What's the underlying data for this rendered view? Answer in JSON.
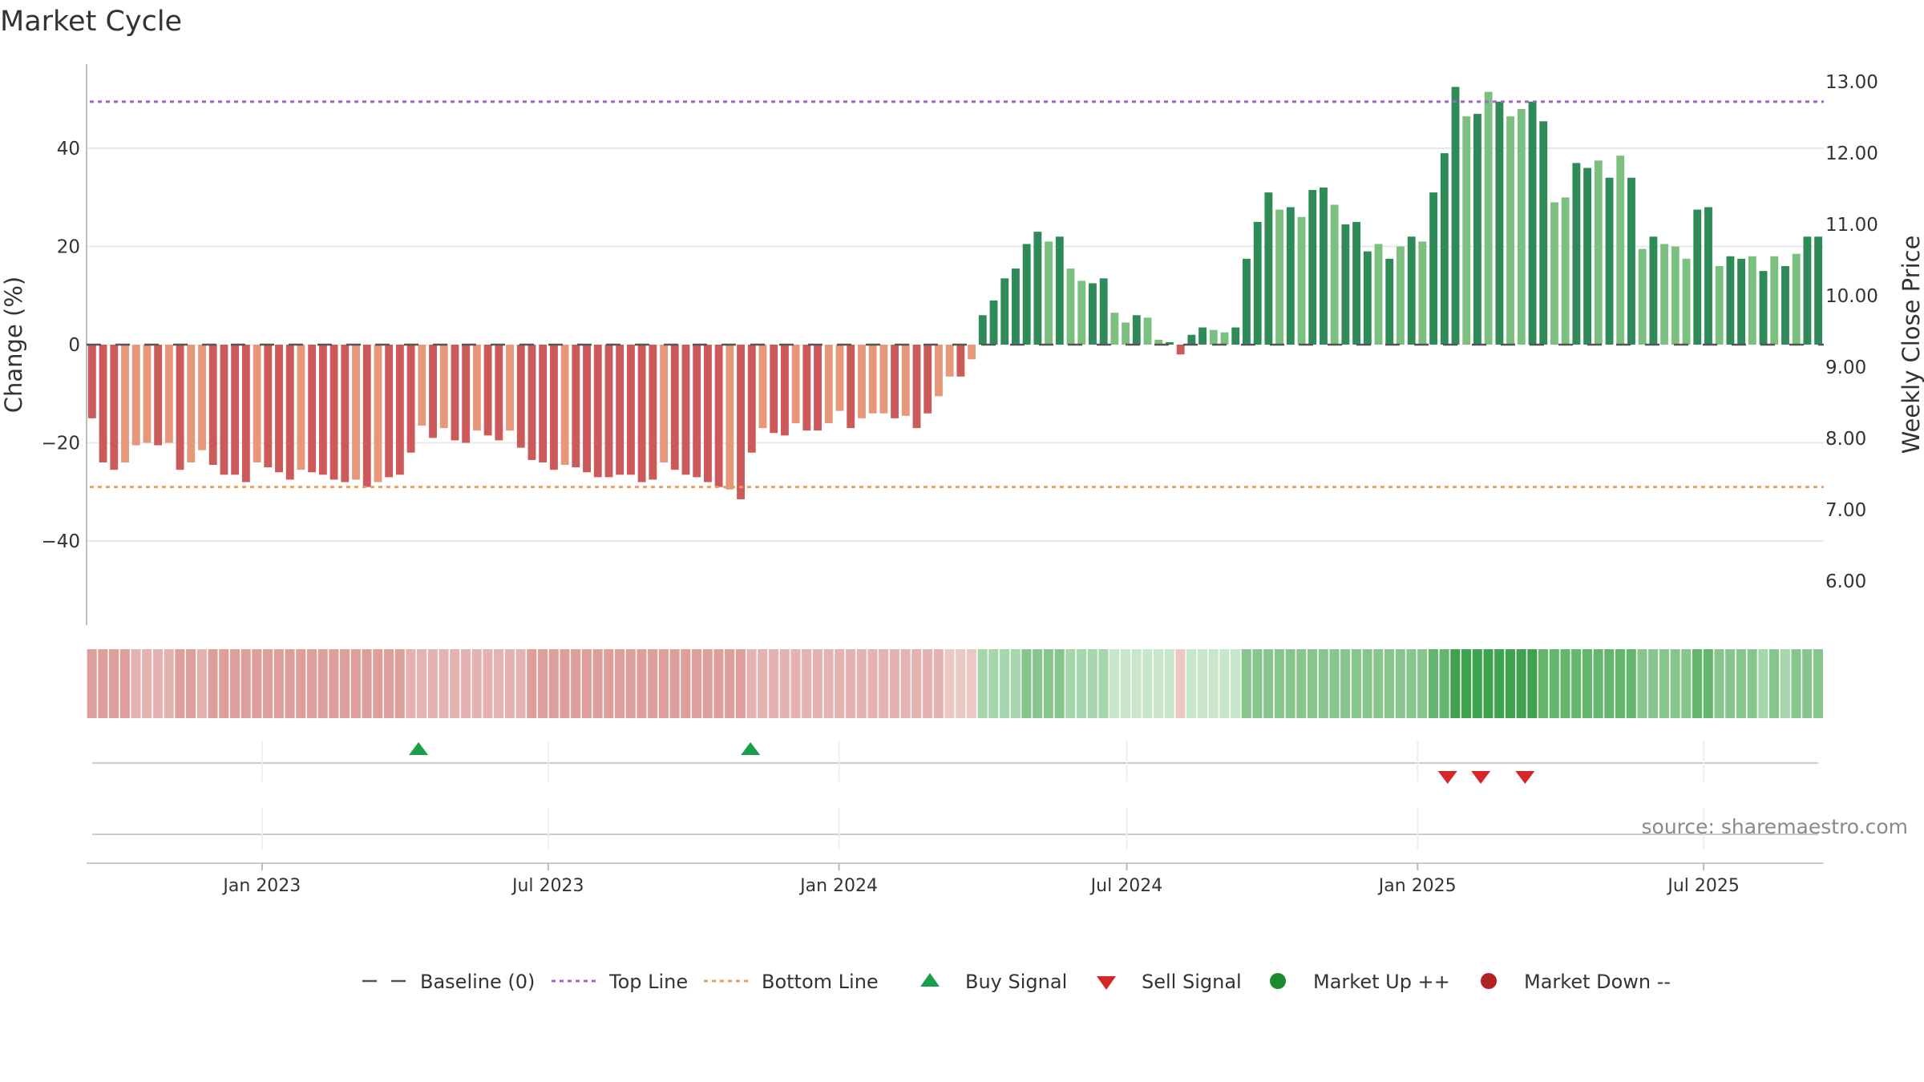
{
  "title": "Market Cycle",
  "source": "source: sharemaestro.com",
  "colors": {
    "red_dark": "#cc5a5a",
    "red_light": "#e8987a",
    "green_dark": "#2e8b57",
    "green_light": "#7cc07f",
    "top_line": "#a463c9",
    "bottom_line": "#e8a060",
    "baseline": "#555555",
    "buy": "#1a9e4a",
    "sell": "#d62728",
    "market_up": "#1e8a2e",
    "market_down": "#b22222"
  },
  "legend": [
    {
      "label": "Baseline (0)",
      "icon": "dash-line",
      "color": "#555555"
    },
    {
      "label": "Top Line",
      "icon": "dotted-line",
      "color": "#a463c9"
    },
    {
      "label": "Bottom Line",
      "icon": "dotted-line",
      "color": "#e8a060"
    },
    {
      "label": "Buy Signal",
      "icon": "triangle-up",
      "color": "#1a9e4a"
    },
    {
      "label": "Sell Signal",
      "icon": "triangle-down",
      "color": "#d62728"
    },
    {
      "label": "Market Up ++",
      "icon": "circle",
      "color": "#1e8a2e"
    },
    {
      "label": "Market Down --",
      "icon": "circle",
      "color": "#b22222"
    }
  ],
  "chart_data": {
    "type": "bar",
    "title": "Market Cycle",
    "ylabel": "Change (%)",
    "y2label": "Weekly Close Price",
    "ylim": [
      -57,
      57
    ],
    "y_ticks": [
      40,
      20,
      0,
      -20,
      -40
    ],
    "y_tick_labels": [
      "40",
      "20",
      "0",
      "−20",
      "−40"
    ],
    "y2_ticks": [
      13,
      12,
      11,
      10,
      9,
      8,
      7,
      6
    ],
    "y2_tick_labels": [
      "13.00",
      "12.00",
      "11.00",
      "10.00",
      "9.00",
      "8.00",
      "7.00",
      "6.00"
    ],
    "x_start": "2022-09-12",
    "x_end": "2025-09-15",
    "x_ticks": [
      "2023-01-01",
      "2023-07-01",
      "2024-01-01",
      "2024-07-01",
      "2025-01-01",
      "2025-07-01"
    ],
    "x_tick_labels": [
      "Jan 2023",
      "Jul 2023",
      "Jan 2024",
      "Jul 2024",
      "Jan 2025",
      "Jul 2025"
    ],
    "top_line": 49.5,
    "bottom_line": -29,
    "baseline": 0,
    "grid": true,
    "legend_position": "bottom",
    "values": [
      -15,
      -24,
      -25.5,
      -24,
      -20.5,
      -20,
      -20.5,
      -20,
      -25.5,
      -24,
      -21.5,
      -24.5,
      -26.5,
      -26.5,
      -28,
      -24,
      -25,
      -26,
      -27.5,
      -25.5,
      -26,
      -26.5,
      -27.5,
      -28,
      -27.5,
      -29,
      -28,
      -27,
      -26.5,
      -22,
      -16.5,
      -19,
      -17,
      -19.5,
      -20,
      -17.5,
      -18.5,
      -19.5,
      -17.5,
      -21,
      -23.5,
      -24,
      -25.5,
      -24.5,
      -25,
      -26,
      -27,
      -27,
      -26.5,
      -26.5,
      -28,
      -27.5,
      -24,
      -25.5,
      -26.5,
      -27,
      -28,
      -29,
      -29.5,
      -31.5,
      -22,
      -17,
      -18,
      -18.5,
      -16,
      -17.5,
      -17.5,
      -16,
      -13.5,
      -17,
      -15,
      -14,
      -14,
      -15,
      -14.5,
      -17,
      -14,
      -10.5,
      -6.5,
      -6.5,
      -3,
      6,
      9,
      13.5,
      15.5,
      20.5,
      23,
      21,
      22,
      15.5,
      13,
      12.5,
      13.5,
      6.5,
      4.5,
      6,
      5.5,
      1,
      0.5,
      -2,
      2,
      3.5,
      3,
      2.5,
      3.5,
      17.5,
      25,
      31,
      27.5,
      28,
      26,
      31.5,
      32,
      28.5,
      24.5,
      25,
      19,
      20.5,
      17.5,
      20,
      22,
      21,
      31,
      39,
      52.5,
      46.5,
      47,
      51.5,
      49.5,
      46.5,
      48,
      49.5,
      45.5,
      29,
      30,
      37,
      36,
      37.5,
      34,
      38.5,
      34,
      19.5,
      22,
      20.5,
      20,
      17.5,
      27.5,
      28,
      16,
      18,
      17.5,
      18,
      15,
      18,
      16,
      18.5,
      22,
      22
    ],
    "shades": [
      "d",
      "d",
      "d",
      "l",
      "l",
      "l",
      "d",
      "l",
      "d",
      "l",
      "l",
      "d",
      "d",
      "d",
      "d",
      "l",
      "d",
      "d",
      "d",
      "l",
      "d",
      "d",
      "d",
      "d",
      "l",
      "d",
      "l",
      "d",
      "d",
      "d",
      "l",
      "d",
      "l",
      "d",
      "d",
      "l",
      "d",
      "d",
      "l",
      "d",
      "d",
      "d",
      "d",
      "l",
      "d",
      "d",
      "d",
      "d",
      "d",
      "d",
      "d",
      "d",
      "l",
      "d",
      "d",
      "d",
      "d",
      "d",
      "l",
      "d",
      "d",
      "l",
      "d",
      "d",
      "l",
      "d",
      "d",
      "l",
      "l",
      "d",
      "l",
      "l",
      "l",
      "d",
      "l",
      "d",
      "d",
      "l",
      "l",
      "d",
      "l",
      "d",
      "d",
      "d",
      "d",
      "d",
      "d",
      "l",
      "d",
      "l",
      "l",
      "d",
      "d",
      "l",
      "l",
      "d",
      "l",
      "l",
      "d",
      "d",
      "d",
      "d",
      "l",
      "l",
      "d",
      "d",
      "d",
      "d",
      "l",
      "d",
      "l",
      "d",
      "d",
      "l",
      "d",
      "d",
      "d",
      "l",
      "d",
      "l",
      "d",
      "l",
      "d",
      "d",
      "d",
      "l",
      "d",
      "l",
      "d",
      "l",
      "l",
      "d",
      "d",
      "l",
      "l",
      "d",
      "d",
      "l",
      "d",
      "l",
      "d",
      "l",
      "d",
      "l",
      "l",
      "l",
      "d",
      "d",
      "l",
      "d",
      "d",
      "l",
      "d",
      "l",
      "d",
      "l",
      "d",
      "d",
      "l"
    ],
    "heat_strength": [
      3,
      3,
      3,
      3,
      2,
      2,
      2,
      2,
      3,
      3,
      2,
      3,
      3,
      3,
      3,
      3,
      3,
      3,
      3,
      3,
      3,
      3,
      3,
      3,
      3,
      3,
      3,
      3,
      3,
      2,
      2,
      2,
      2,
      2,
      2,
      2,
      2,
      2,
      2,
      2,
      3,
      3,
      3,
      3,
      3,
      3,
      3,
      3,
      3,
      3,
      3,
      3,
      3,
      3,
      3,
      3,
      3,
      3,
      3,
      3,
      2,
      2,
      2,
      2,
      2,
      2,
      2,
      2,
      2,
      2,
      2,
      2,
      2,
      2,
      2,
      2,
      2,
      2,
      1,
      1,
      1,
      2,
      2,
      2,
      2,
      3,
      3,
      3,
      3,
      2,
      2,
      2,
      2,
      1,
      1,
      1,
      1,
      1,
      1,
      1,
      1,
      1,
      1,
      1,
      1,
      3,
      3,
      3,
      3,
      3,
      3,
      3,
      3,
      3,
      3,
      3,
      3,
      3,
      3,
      3,
      3,
      3,
      4,
      4,
      5,
      5,
      5,
      5,
      5,
      5,
      5,
      5,
      4,
      4,
      4,
      4,
      4,
      4,
      4,
      4,
      4,
      3,
      3,
      3,
      3,
      3,
      4,
      4,
      3,
      3,
      3,
      3,
      2,
      3,
      2,
      3,
      3,
      3
    ],
    "buy_signals": [
      "2023-04-10",
      "2023-11-06"
    ],
    "sell_signals": [
      "2025-01-20",
      "2025-02-10",
      "2025-03-10"
    ]
  }
}
